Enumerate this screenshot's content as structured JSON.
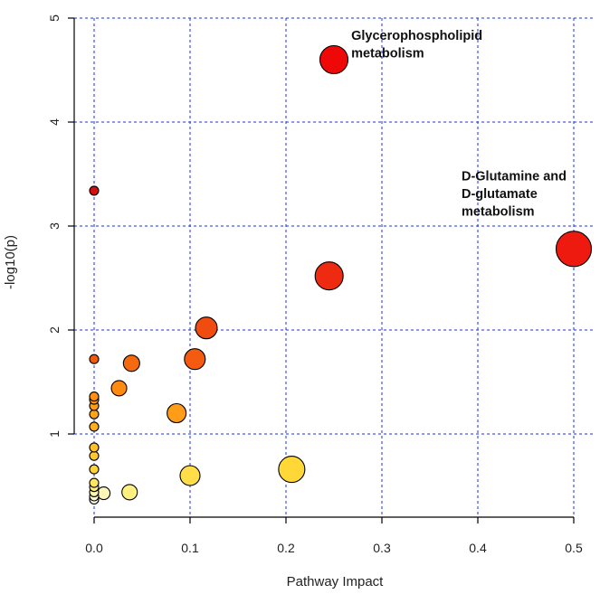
{
  "chart_data": {
    "type": "scatter",
    "title": "",
    "xlabel": "Pathway Impact",
    "ylabel": "-log10(p)",
    "xlim": [
      -0.005,
      0.51
    ],
    "ylim": [
      0.2,
      5
    ],
    "x_ticks": [
      "0.0",
      "0.1",
      "0.2",
      "0.3",
      "0.4",
      "0.5"
    ],
    "y_ticks": [
      "1",
      "2",
      "3",
      "4",
      "5"
    ],
    "grid": true,
    "grid_color": "#2233cc",
    "points": [
      {
        "x": 0.0,
        "y": 0.37,
        "size": 5,
        "color": "#fffef2"
      },
      {
        "x": 0.0,
        "y": 0.4,
        "size": 5,
        "color": "#fffbd0"
      },
      {
        "x": 0.0,
        "y": 0.44,
        "size": 5,
        "color": "#fff7b0"
      },
      {
        "x": 0.0,
        "y": 0.49,
        "size": 5,
        "color": "#ffef80"
      },
      {
        "x": 0.0,
        "y": 0.53,
        "size": 5,
        "color": "#ffe560"
      },
      {
        "x": 0.0,
        "y": 0.66,
        "size": 5,
        "color": "#ffd23a"
      },
      {
        "x": 0.0,
        "y": 0.79,
        "size": 5,
        "color": "#ffc72e"
      },
      {
        "x": 0.0,
        "y": 0.87,
        "size": 5,
        "color": "#ffc02a"
      },
      {
        "x": 0.0,
        "y": 1.07,
        "size": 5,
        "color": "#ffac1e"
      },
      {
        "x": 0.0,
        "y": 1.19,
        "size": 5,
        "color": "#ffa31a"
      },
      {
        "x": 0.0,
        "y": 1.27,
        "size": 5,
        "color": "#ff9d18"
      },
      {
        "x": 0.0,
        "y": 1.33,
        "size": 5,
        "color": "#ff9616"
      },
      {
        "x": 0.0,
        "y": 1.36,
        "size": 5,
        "color": "#ff9014"
      },
      {
        "x": 0.0,
        "y": 1.72,
        "size": 5,
        "color": "#f25a0a"
      },
      {
        "x": 0.0,
        "y": 3.34,
        "size": 5,
        "color": "#d21010"
      },
      {
        "x": 0.01,
        "y": 0.43,
        "size": 7,
        "color": "#fff7b8"
      },
      {
        "x": 0.037,
        "y": 0.44,
        "size": 8.5,
        "color": "#fff080"
      },
      {
        "x": 0.026,
        "y": 1.44,
        "size": 8.5,
        "color": "#ff8a12"
      },
      {
        "x": 0.039,
        "y": 1.68,
        "size": 9,
        "color": "#f56a10"
      },
      {
        "x": 0.086,
        "y": 1.2,
        "size": 10.5,
        "color": "#ff9c18"
      },
      {
        "x": 0.1,
        "y": 0.6,
        "size": 11,
        "color": "#ffde4a"
      },
      {
        "x": 0.105,
        "y": 1.72,
        "size": 11.5,
        "color": "#f55a0e"
      },
      {
        "x": 0.117,
        "y": 2.02,
        "size": 12,
        "color": "#f04c10"
      },
      {
        "x": 0.206,
        "y": 0.66,
        "size": 14.5,
        "color": "#ffd838"
      },
      {
        "x": 0.245,
        "y": 2.52,
        "size": 15.5,
        "color": "#ee2a10"
      },
      {
        "x": 0.25,
        "y": 4.6,
        "size": 15.5,
        "color": "#ee0808"
      },
      {
        "x": 0.5,
        "y": 2.78,
        "size": 19.5,
        "color": "#ee1a10"
      }
    ],
    "annotations": [
      {
        "lines": [
          "Glycerophospholipid",
          "metabolism"
        ],
        "x": 0.268,
        "y": 4.79
      },
      {
        "lines": [
          "D-Glutamine and",
          "D-glutamate",
          "metabolism"
        ],
        "x": 0.383,
        "y": 3.44
      }
    ]
  }
}
